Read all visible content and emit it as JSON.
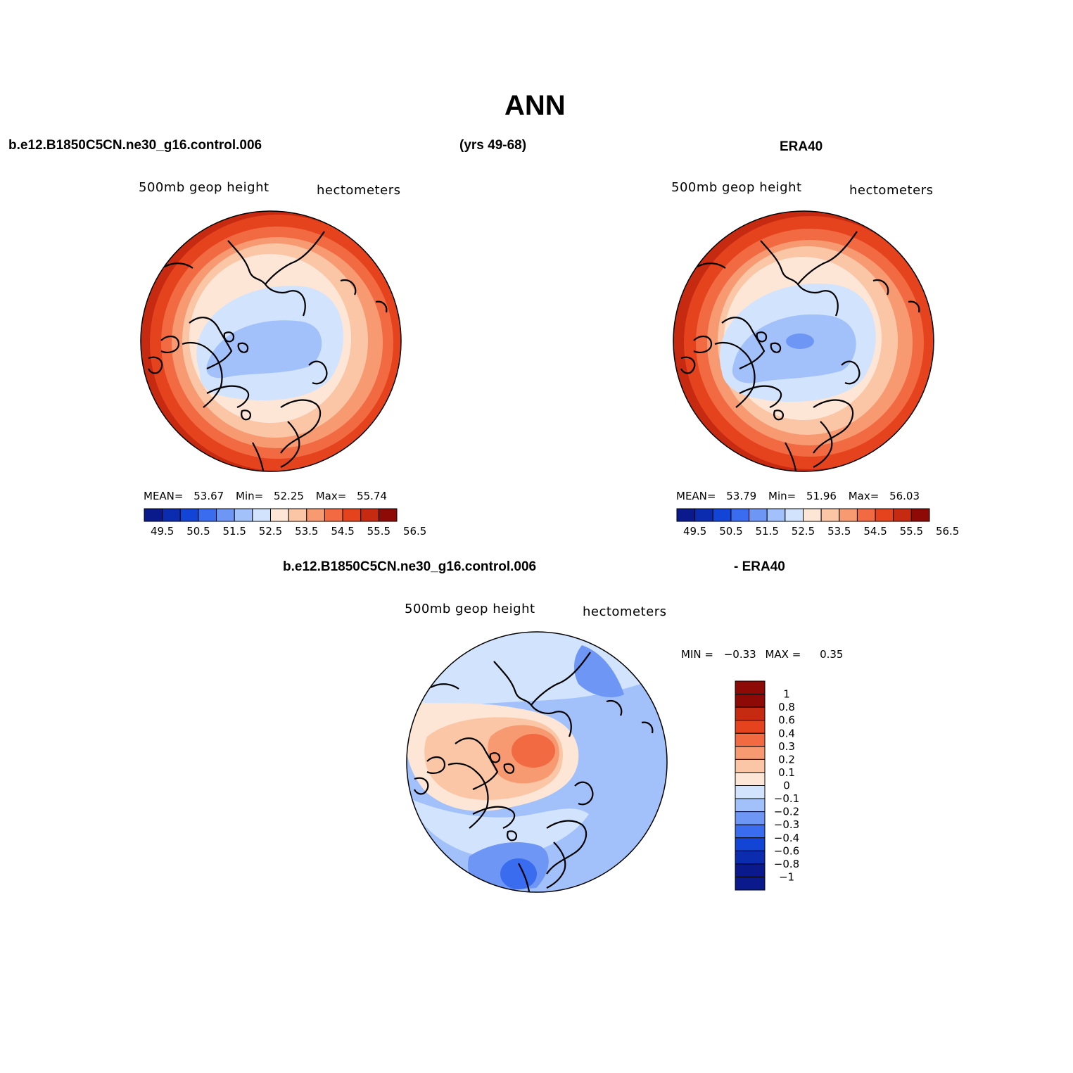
{
  "title": "ANN",
  "header": {
    "case_name": "b.e12.B1850C5CN.ne30_g16.control.006",
    "years": "(yrs 49-68)",
    "obs_name": "ERA40"
  },
  "panels": [
    {
      "id": "model",
      "variable": "500mb geop height",
      "units": "hectometers",
      "stats": {
        "mean_label": "MEAN=",
        "mean": "53.67",
        "min_label": "Min=",
        "min": "52.25",
        "max_label": "Max=",
        "max": "55.74"
      }
    },
    {
      "id": "obs",
      "variable": "500mb geop height",
      "units": "hectometers",
      "stats": {
        "mean_label": "MEAN=",
        "mean": "53.79",
        "min_label": "Min=",
        "min": "51.96",
        "max_label": "Max=",
        "max": "56.03"
      }
    },
    {
      "id": "diff",
      "title_left": "b.e12.B1850C5CN.ne30_g16.control.006",
      "title_right": "- ERA40",
      "variable": "500mb geop height",
      "units": "hectometers",
      "stats": {
        "min_label": "MIN =",
        "min": "−0.33",
        "max_label": "MAX =",
        "max": "0.35"
      }
    }
  ],
  "colorbars": {
    "abs": {
      "colors": [
        "#0a1a8c",
        "#0c2cb0",
        "#1245d6",
        "#3a6cf0",
        "#6e96f5",
        "#a2c0fa",
        "#d2e4fd",
        "#fde6d6",
        "#fbc6a6",
        "#f79a72",
        "#f26a42",
        "#e5421e",
        "#c62a10",
        "#8e0a06"
      ],
      "labels": [
        "49.5",
        "50.5",
        "51.5",
        "52.5",
        "53.5",
        "54.5",
        "55.5",
        "56.5"
      ]
    },
    "diff": {
      "colors": [
        "#0a1a8c",
        "#0c2cb0",
        "#1245d6",
        "#3a6cf0",
        "#6e96f5",
        "#a2c0fa",
        "#d2e4fd",
        "#fde6d6",
        "#fbc6a6",
        "#f79a72",
        "#f26a42",
        "#e5421e",
        "#c62a10",
        "#8e0a06"
      ],
      "labels": [
        "−1",
        "−0.8",
        "−0.6",
        "−0.4",
        "−0.3",
        "−0.2",
        "−0.1",
        "0",
        "0.1",
        "0.2",
        "0.3",
        "0.4",
        "0.6",
        "0.8",
        "1"
      ]
    }
  }
}
